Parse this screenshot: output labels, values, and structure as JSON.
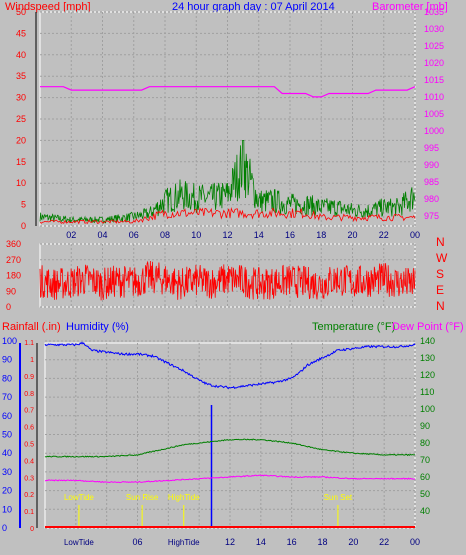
{
  "header": {
    "left_label": "Windspeed [mph]",
    "title_prefix": "24 hour graph day : ",
    "date": "07 April 2014",
    "right_label": "Barometer [mb]"
  },
  "colors": {
    "background": "#c0c0c0",
    "plot_background": "#c0c0c0",
    "grid": "#a0a0a0",
    "frame": "#ffffff",
    "windspeed": "#ff0000",
    "gust": "#007f00",
    "barometer": "#ff00ff",
    "wind_dir": "#ff0000",
    "humidity": "#0000ff",
    "temperature": "#007f00",
    "dew_point": "#ff00ff",
    "rainfall": "#ff0000",
    "event_marker": "#ffff00",
    "tick_text": "#000080",
    "left_axis_text": "#ff0000",
    "right_axis_text": "#ff00ff"
  },
  "chart_data": [
    {
      "type": "line",
      "title": "24 hour graph day : 07 April 2014",
      "series": [
        {
          "name": "Windspeed [mph]",
          "x": [
            0,
            2,
            4,
            6,
            7,
            8,
            9,
            10,
            11,
            12,
            13,
            14,
            15,
            16,
            17,
            18,
            19,
            20,
            21,
            22,
            23,
            24
          ],
          "values": [
            1,
            1,
            1,
            1,
            2,
            3,
            3,
            3,
            3,
            3,
            3,
            3,
            3,
            3,
            3,
            2,
            2,
            2,
            2,
            2,
            2,
            2
          ]
        },
        {
          "name": "Gust [mph]",
          "x": [
            0,
            2,
            4,
            6,
            7,
            8,
            9,
            10,
            11,
            12,
            13,
            14,
            15,
            16,
            17,
            18,
            19,
            20,
            21,
            22,
            23,
            24
          ],
          "values": [
            3,
            2,
            2,
            3,
            4,
            8,
            10,
            9,
            9,
            10,
            20,
            8,
            8,
            7,
            7,
            6,
            6,
            5,
            5,
            6,
            6,
            10
          ]
        },
        {
          "name": "Barometer [mb]",
          "x": [
            0,
            1.5,
            2,
            6.5,
            7,
            15,
            15.5,
            17,
            17.5,
            18,
            18.5,
            21,
            21.5,
            23.5,
            24
          ],
          "values": [
            1013,
            1013,
            1012,
            1012,
            1013,
            1013,
            1011,
            1011,
            1010,
            1010,
            1011,
            1011,
            1012,
            1012,
            1013
          ]
        }
      ],
      "x_ticks": [
        "02",
        "04",
        "06",
        "08",
        "10",
        "12",
        "14",
        "16",
        "18",
        "20",
        "22",
        "00"
      ],
      "ylabel": "Windspeed [mph]",
      "ylim": [
        0,
        50
      ],
      "y_ticks": [
        0,
        5,
        10,
        15,
        20,
        25,
        30,
        35,
        40,
        45,
        50
      ],
      "y2label": "Barometer [mb]",
      "y2lim": [
        972,
        1035
      ],
      "y2_ticks": [
        975,
        980,
        985,
        990,
        995,
        1000,
        1005,
        1010,
        1015,
        1020,
        1025,
        1030,
        1035
      ],
      "grid": true
    },
    {
      "type": "line",
      "series": [
        {
          "name": "Wind direction",
          "x": [
            0,
            1,
            2,
            3,
            4,
            5,
            6,
            7,
            8,
            9,
            10,
            11,
            12,
            13,
            14,
            15,
            16,
            17,
            18,
            19,
            20,
            21,
            22,
            23,
            24
          ],
          "values": [
            150,
            130,
            140,
            160,
            130,
            150,
            140,
            170,
            160,
            130,
            150,
            140,
            160,
            150,
            130,
            140,
            150,
            140,
            130,
            160,
            140,
            150,
            160,
            140,
            130
          ]
        }
      ],
      "y_ticks": [
        0,
        90,
        180,
        270,
        360
      ],
      "ylim": [
        0,
        360
      ],
      "compass": [
        "N",
        "W",
        "S",
        "E",
        "N"
      ],
      "grid": true
    },
    {
      "type": "line",
      "series": [
        {
          "name": "Humidity (%)",
          "x": [
            0,
            2,
            2.5,
            3,
            4,
            5,
            6,
            7,
            8,
            9,
            10,
            10.5,
            11,
            12,
            13,
            14,
            15,
            16,
            16.5,
            17,
            18,
            19,
            20,
            21,
            22,
            23,
            24
          ],
          "values": [
            98,
            98,
            99,
            95,
            94,
            93,
            93,
            92,
            88,
            84,
            79,
            77,
            76,
            75,
            76,
            77,
            78,
            80,
            83,
            87,
            91,
            95,
            96,
            97,
            97,
            97,
            98
          ]
        },
        {
          "name": "Temperature (°F)",
          "x": [
            0,
            2,
            4,
            6,
            7,
            8,
            9,
            10,
            11,
            12,
            13,
            14,
            15,
            16,
            17,
            18,
            19,
            20,
            22,
            24
          ],
          "values": [
            72,
            72,
            72,
            73,
            75,
            77,
            79,
            80,
            81,
            82,
            82,
            82,
            81,
            80,
            78,
            76,
            75,
            74,
            73,
            73
          ]
        },
        {
          "name": "Dew Point (°F)",
          "x": [
            0,
            2,
            4,
            6,
            8,
            10,
            12,
            14,
            16,
            18,
            20,
            22,
            24
          ],
          "values": [
            58,
            58,
            57,
            57,
            58,
            59,
            60,
            61,
            60,
            60,
            59,
            59,
            59
          ]
        },
        {
          "name": "Rainfall (.in)",
          "x": [
            0,
            24
          ],
          "values": [
            0,
            0
          ]
        }
      ],
      "left_axis_rain_ticks": [
        0,
        0.1,
        0.2,
        0.3,
        0.4,
        0.5,
        0.6,
        0.7,
        0.8,
        0.9,
        1,
        1.1
      ],
      "left_axis_humidity_ticks": [
        0,
        10,
        20,
        30,
        40,
        50,
        60,
        70,
        80,
        90,
        100
      ],
      "right_axis_temperature_ticks": [
        40,
        50,
        60,
        70,
        80,
        90,
        100,
        110,
        120,
        130,
        140
      ],
      "x_ticks": [
        "LowTide",
        "06",
        "HighTide",
        "12",
        "14",
        "16",
        "18",
        "20",
        "22",
        "00"
      ],
      "annotations": [
        {
          "label": "LowTide",
          "x": 2.2
        },
        {
          "label": "Sun Rise",
          "x": 6.3
        },
        {
          "label": "HighTide",
          "x": 9.0
        },
        {
          "label": "Sun Set",
          "x": 19.0
        }
      ],
      "now_marker_x": 10.8,
      "grid": true
    }
  ],
  "panel3_labels": {
    "rain": "Rainfall (.in)",
    "humidity": "Humidity (%)",
    "temperature": "Temperature (°F)",
    "dew_point": "Dew Point (°F)"
  }
}
